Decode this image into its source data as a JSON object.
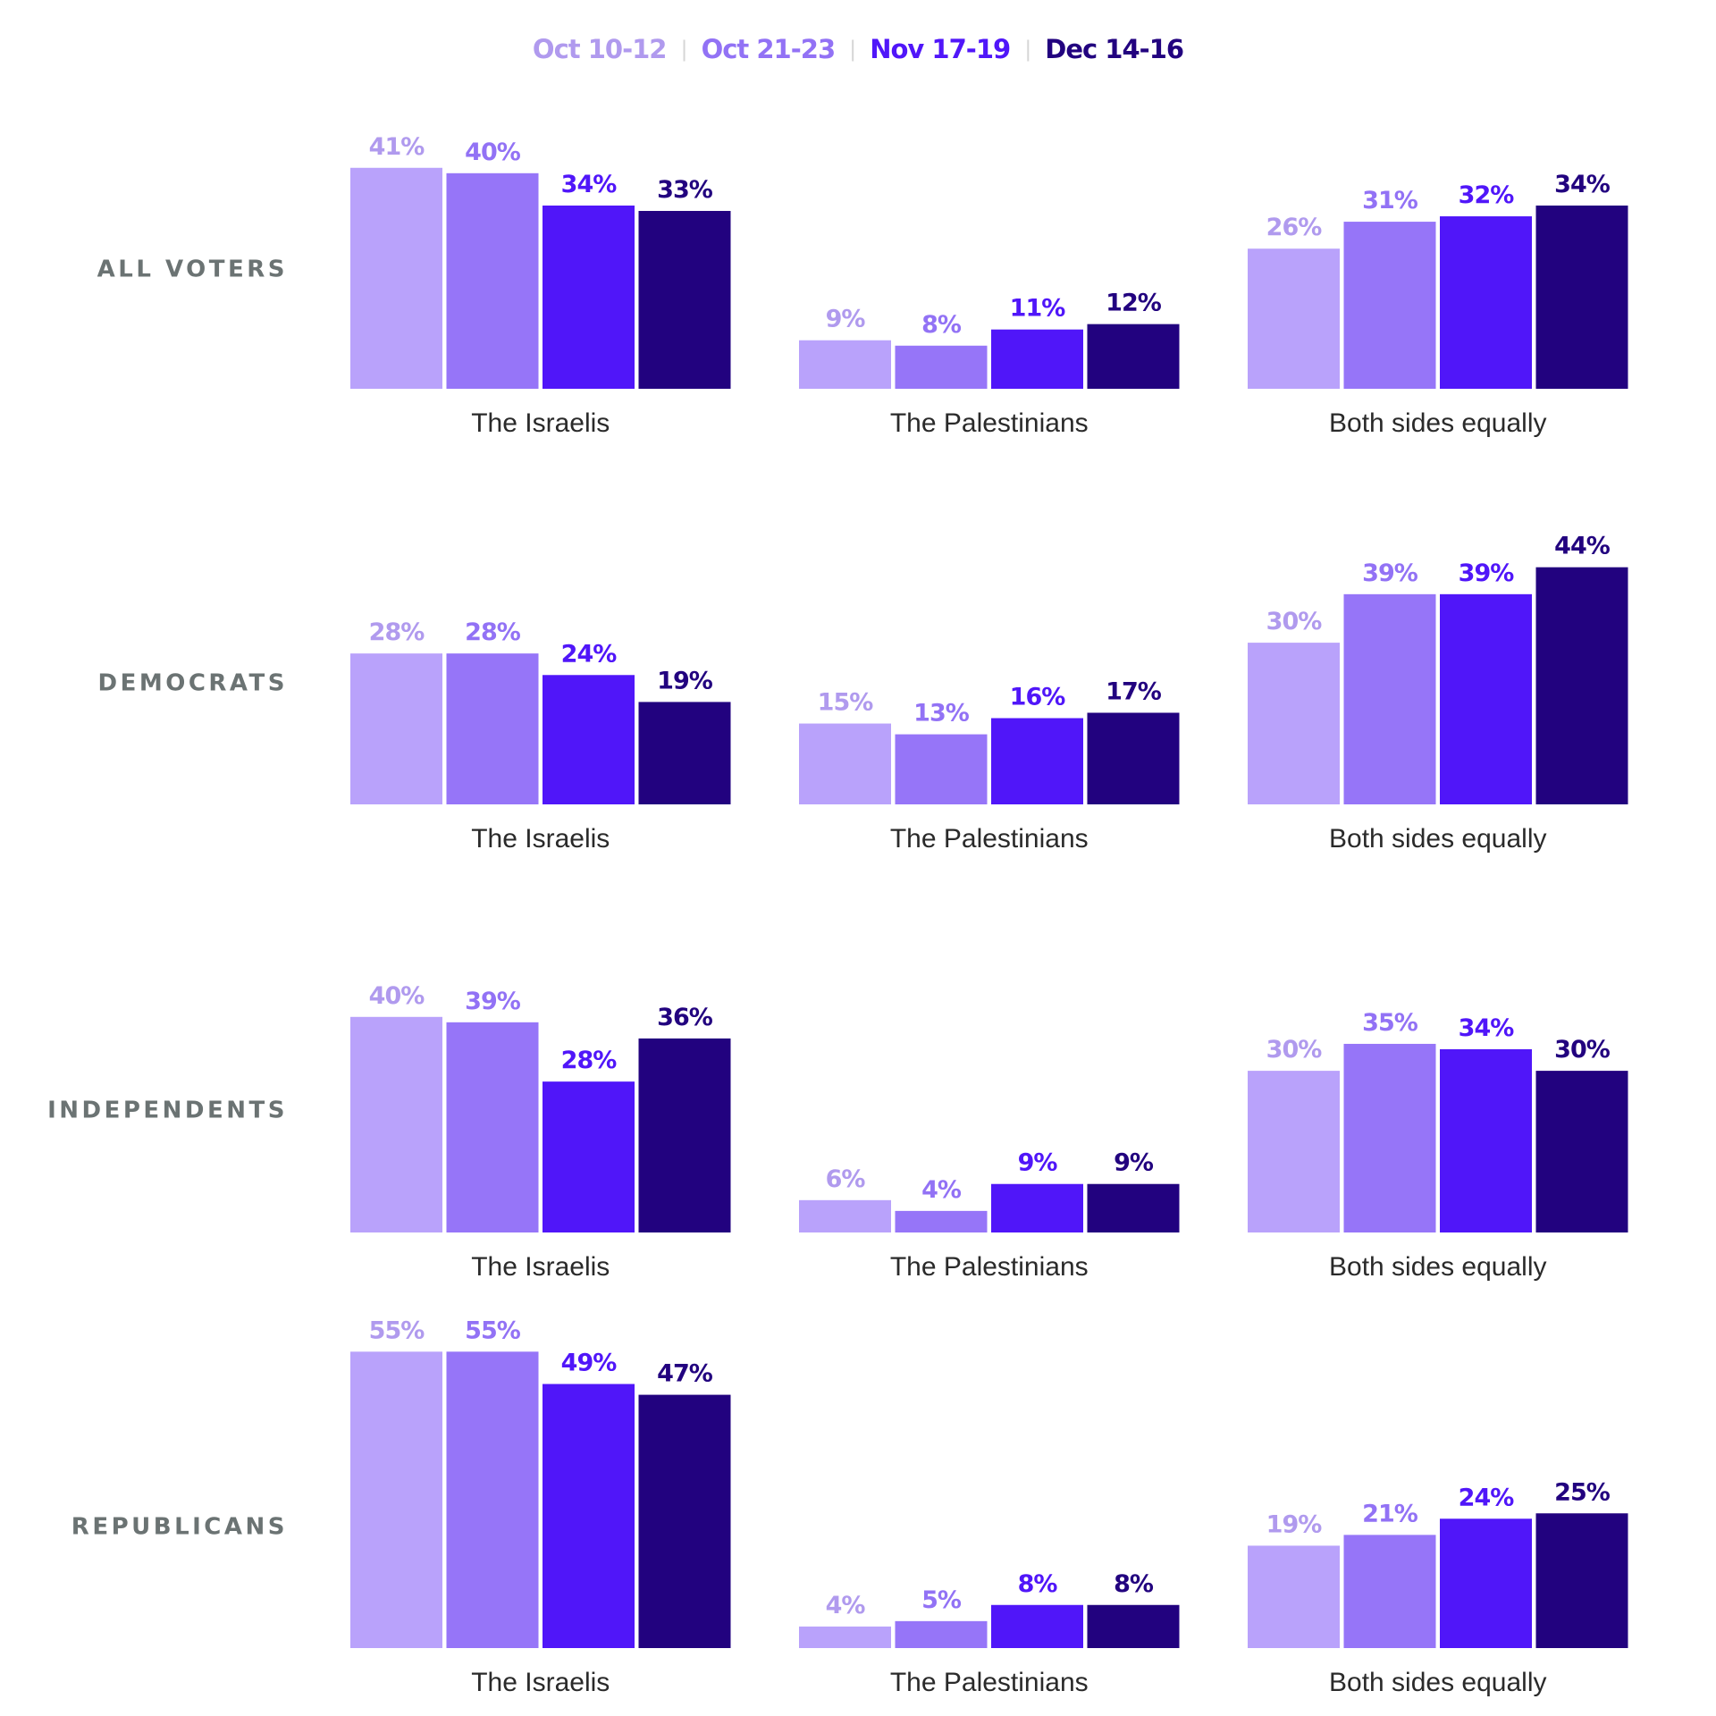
{
  "chart_data": {
    "type": "bar",
    "title": "",
    "xlabel": "",
    "ylabel": "",
    "ylim": [
      0,
      60
    ],
    "grid": false,
    "legend_placement": "top-center",
    "value_format": "{v}%",
    "categories": [
      "The Israelis",
      "The Palestinians",
      "Both sides equally"
    ],
    "series_names": [
      "Oct 10-12",
      "Oct 21-23",
      "Nov 17-19",
      "Dec 14-16"
    ],
    "series_colors": [
      "#b9a2fb",
      "#9675f8",
      "#5016f9",
      "#22027f"
    ],
    "label_colors": [
      "#b09aee",
      "#9272f5",
      "#5016f9",
      "#22027f"
    ],
    "panels": [
      {
        "group": "ALL VOTERS",
        "values": [
          [
            41,
            40,
            34,
            33
          ],
          [
            9,
            8,
            11,
            12
          ],
          [
            26,
            31,
            32,
            34
          ]
        ]
      },
      {
        "group": "DEMOCRATS",
        "values": [
          [
            28,
            28,
            24,
            19
          ],
          [
            15,
            13,
            16,
            17
          ],
          [
            30,
            39,
            39,
            44
          ]
        ]
      },
      {
        "group": "INDEPENDENTS",
        "values": [
          [
            40,
            39,
            28,
            36
          ],
          [
            6,
            4,
            9,
            9
          ],
          [
            30,
            35,
            34,
            30
          ]
        ]
      },
      {
        "group": "REPUBLICANS",
        "values": [
          [
            55,
            55,
            49,
            47
          ],
          [
            4,
            5,
            8,
            8
          ],
          [
            19,
            21,
            24,
            25
          ]
        ]
      }
    ]
  },
  "legend": {
    "items": [
      {
        "label": "Oct 10-12",
        "color": "#b09aee"
      },
      {
        "label": "Oct 21-23",
        "color": "#9272f5"
      },
      {
        "label": "Nov 17-19",
        "color": "#5016f9"
      },
      {
        "label": "Dec 14-16",
        "color": "#22027f"
      }
    ],
    "separator": "|"
  }
}
